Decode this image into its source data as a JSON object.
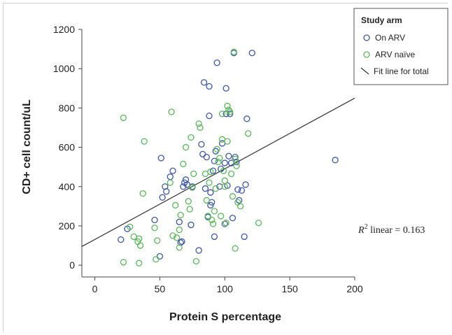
{
  "chart_data": {
    "type": "scatter",
    "title": "",
    "xlabel": "Protein S percentage",
    "ylabel": "CD+ cell count/uL",
    "xlim": [
      -10,
      200
    ],
    "ylim": [
      -60,
      1200
    ],
    "xticks": [
      0,
      50,
      100,
      150,
      200
    ],
    "yticks": [
      0,
      200,
      400,
      600,
      800,
      1000,
      1200
    ],
    "grid": false,
    "legend": {
      "title": "Study arm",
      "placement": "top-right",
      "entries": [
        {
          "label": "On ARV",
          "marker": "circle",
          "color": "#3d56a6"
        },
        {
          "label": "ARV naïve",
          "marker": "circle",
          "color": "#5ab85a"
        },
        {
          "label": "Fit line for total",
          "marker": "line",
          "color": "#333333"
        }
      ]
    },
    "annotation": {
      "prefix": "R",
      "superscript": "2",
      "suffix": " linear = 0.163"
    },
    "fit_line": {
      "x": [
        -10,
        200
      ],
      "y": [
        95,
        850
      ]
    },
    "series": [
      {
        "name": "On ARV",
        "color": "#3d56a6",
        "points": [
          [
            20,
            130
          ],
          [
            25,
            185
          ],
          [
            46,
            230
          ],
          [
            50,
            45
          ],
          [
            51,
            545
          ],
          [
            52,
            345
          ],
          [
            54,
            400
          ],
          [
            55,
            375
          ],
          [
            58,
            450
          ],
          [
            60,
            480
          ],
          [
            65,
            220
          ],
          [
            66,
            115
          ],
          [
            67,
            120
          ],
          [
            68,
            400
          ],
          [
            69,
            420
          ],
          [
            70,
            435
          ],
          [
            71,
            410
          ],
          [
            74,
            205
          ],
          [
            75,
            400
          ],
          [
            80,
            75
          ],
          [
            82,
            615
          ],
          [
            83,
            565
          ],
          [
            84,
            930
          ],
          [
            85,
            390
          ],
          [
            86,
            550
          ],
          [
            87,
            245
          ],
          [
            88,
            760
          ],
          [
            88,
            910
          ],
          [
            89,
            370
          ],
          [
            89,
            305
          ],
          [
            90,
            320
          ],
          [
            91,
            480
          ],
          [
            92,
            145
          ],
          [
            92,
            530
          ],
          [
            93,
            580
          ],
          [
            94,
            1030
          ],
          [
            96,
            400
          ],
          [
            97,
            490
          ],
          [
            98,
            620
          ],
          [
            100,
            210
          ],
          [
            100,
            520
          ],
          [
            101,
            900
          ],
          [
            101,
            770
          ],
          [
            102,
            405
          ],
          [
            103,
            555
          ],
          [
            104,
            770
          ],
          [
            105,
            520
          ],
          [
            106,
            240
          ],
          [
            107,
            1080
          ],
          [
            108,
            550
          ],
          [
            109,
            525
          ],
          [
            110,
            385
          ],
          [
            111,
            330
          ],
          [
            113,
            380
          ],
          [
            115,
            145
          ],
          [
            116,
            410
          ],
          [
            117,
            745
          ],
          [
            121,
            1080
          ],
          [
            185,
            535
          ]
        ]
      },
      {
        "name": "ARV naïve",
        "color": "#5ab85a",
        "points": [
          [
            22,
            750
          ],
          [
            22,
            15
          ],
          [
            27,
            195
          ],
          [
            30,
            145
          ],
          [
            33,
            120
          ],
          [
            34,
            135
          ],
          [
            34,
            10
          ],
          [
            35,
            100
          ],
          [
            37,
            365
          ],
          [
            38,
            630
          ],
          [
            46,
            190
          ],
          [
            47,
            30
          ],
          [
            48,
            125
          ],
          [
            58,
            420
          ],
          [
            59,
            780
          ],
          [
            60,
            150
          ],
          [
            62,
            305
          ],
          [
            63,
            140
          ],
          [
            65,
            90
          ],
          [
            65,
            180
          ],
          [
            66,
            255
          ],
          [
            68,
            515
          ],
          [
            70,
            600
          ],
          [
            72,
            325
          ],
          [
            73,
            285
          ],
          [
            74,
            650
          ],
          [
            75,
            395
          ],
          [
            76,
            465
          ],
          [
            78,
            20
          ],
          [
            80,
            720
          ],
          [
            81,
            700
          ],
          [
            85,
            465
          ],
          [
            86,
            330
          ],
          [
            87,
            250
          ],
          [
            88,
            420
          ],
          [
            89,
            475
          ],
          [
            90,
            230
          ],
          [
            91,
            210
          ],
          [
            92,
            275
          ],
          [
            93,
            390
          ],
          [
            94,
            590
          ],
          [
            95,
            525
          ],
          [
            96,
            545
          ],
          [
            97,
            250
          ],
          [
            98,
            640
          ],
          [
            98,
            770
          ],
          [
            99,
            480
          ],
          [
            100,
            430
          ],
          [
            100,
            400
          ],
          [
            101,
            215
          ],
          [
            102,
            810
          ],
          [
            102,
            630
          ],
          [
            103,
            790
          ],
          [
            104,
            780
          ],
          [
            105,
            465
          ],
          [
            106,
            350
          ],
          [
            108,
            85
          ],
          [
            108,
            540
          ],
          [
            109,
            505
          ],
          [
            110,
            320
          ],
          [
            112,
            300
          ],
          [
            107,
            1085
          ],
          [
            118,
            670
          ],
          [
            126,
            215
          ]
        ]
      }
    ]
  }
}
